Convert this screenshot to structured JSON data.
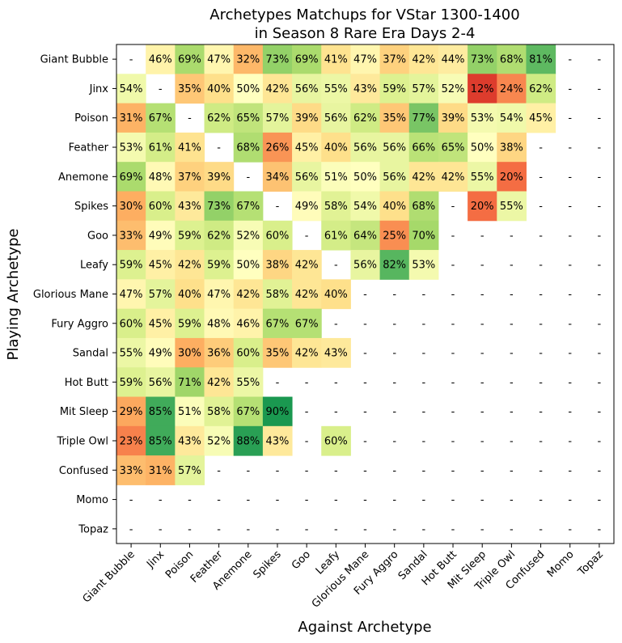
{
  "chart_data": {
    "type": "heatmap",
    "title_lines": [
      "Archetypes Matchups for VStar 1300-1400",
      "in Season 8 Rare Era Days 2-4"
    ],
    "xlabel": "Against Archetype",
    "ylabel": "Playing Archetype",
    "categories": [
      "Giant Bubble",
      "Jinx",
      "Poison",
      "Feather",
      "Anemone",
      "Spikes",
      "Goo",
      "Leafy",
      "Glorious Mane",
      "Fury Aggro",
      "Sandal",
      "Hot Butt",
      "Mit Sleep",
      "Triple Owl",
      "Confused",
      "Momo",
      "Topaz"
    ],
    "missing_label": "-",
    "value_format": "percent",
    "color_scale": {
      "min": 0,
      "max": 100,
      "stops": [
        "#a50026",
        "#d73027",
        "#f46d43",
        "#fdae61",
        "#fee08b",
        "#ffffbf",
        "#d9ef8b",
        "#a6d96a",
        "#66bd63",
        "#1a9850",
        "#006837"
      ]
    },
    "values": [
      [
        null,
        46,
        69,
        47,
        32,
        73,
        69,
        41,
        47,
        37,
        42,
        44,
        73,
        68,
        81,
        null,
        null
      ],
      [
        54,
        null,
        35,
        40,
        50,
        42,
        56,
        55,
        43,
        59,
        57,
        52,
        12,
        24,
        62,
        null,
        null
      ],
      [
        31,
        67,
        null,
        62,
        65,
        57,
        39,
        56,
        62,
        35,
        77,
        39,
        53,
        54,
        45,
        null,
        null
      ],
      [
        53,
        61,
        41,
        null,
        68,
        26,
        45,
        40,
        56,
        56,
        66,
        65,
        50,
        38,
        null,
        null,
        null
      ],
      [
        69,
        48,
        37,
        39,
        null,
        34,
        56,
        51,
        50,
        56,
        42,
        42,
        55,
        20,
        null,
        null,
        null
      ],
      [
        30,
        60,
        43,
        73,
        67,
        null,
        49,
        58,
        54,
        40,
        68,
        null,
        20,
        55,
        null,
        null,
        null
      ],
      [
        33,
        49,
        59,
        62,
        52,
        60,
        null,
        61,
        64,
        25,
        70,
        null,
        null,
        null,
        null,
        null,
        null
      ],
      [
        59,
        45,
        42,
        59,
        50,
        38,
        42,
        null,
        56,
        82,
        53,
        null,
        null,
        null,
        null,
        null,
        null
      ],
      [
        47,
        57,
        40,
        47,
        42,
        58,
        42,
        40,
        null,
        null,
        null,
        null,
        null,
        null,
        null,
        null,
        null
      ],
      [
        60,
        45,
        59,
        48,
        46,
        67,
        67,
        null,
        null,
        null,
        null,
        null,
        null,
        null,
        null,
        null,
        null
      ],
      [
        55,
        49,
        30,
        36,
        60,
        35,
        42,
        43,
        null,
        null,
        null,
        null,
        null,
        null,
        null,
        null,
        null
      ],
      [
        59,
        56,
        71,
        42,
        55,
        null,
        null,
        null,
        null,
        null,
        null,
        null,
        null,
        null,
        null,
        null,
        null
      ],
      [
        29,
        85,
        51,
        58,
        67,
        90,
        null,
        null,
        null,
        null,
        null,
        null,
        null,
        null,
        null,
        null,
        null
      ],
      [
        23,
        85,
        43,
        52,
        88,
        43,
        null,
        60,
        null,
        null,
        null,
        null,
        null,
        null,
        null,
        null,
        null
      ],
      [
        33,
        31,
        57,
        null,
        null,
        null,
        null,
        null,
        null,
        null,
        null,
        null,
        null,
        null,
        null,
        null,
        null
      ],
      [
        null,
        null,
        null,
        null,
        null,
        null,
        null,
        null,
        null,
        null,
        null,
        null,
        null,
        null,
        null,
        null,
        null
      ],
      [
        null,
        null,
        null,
        null,
        null,
        null,
        null,
        null,
        null,
        null,
        null,
        null,
        null,
        null,
        null,
        null,
        null
      ]
    ]
  }
}
